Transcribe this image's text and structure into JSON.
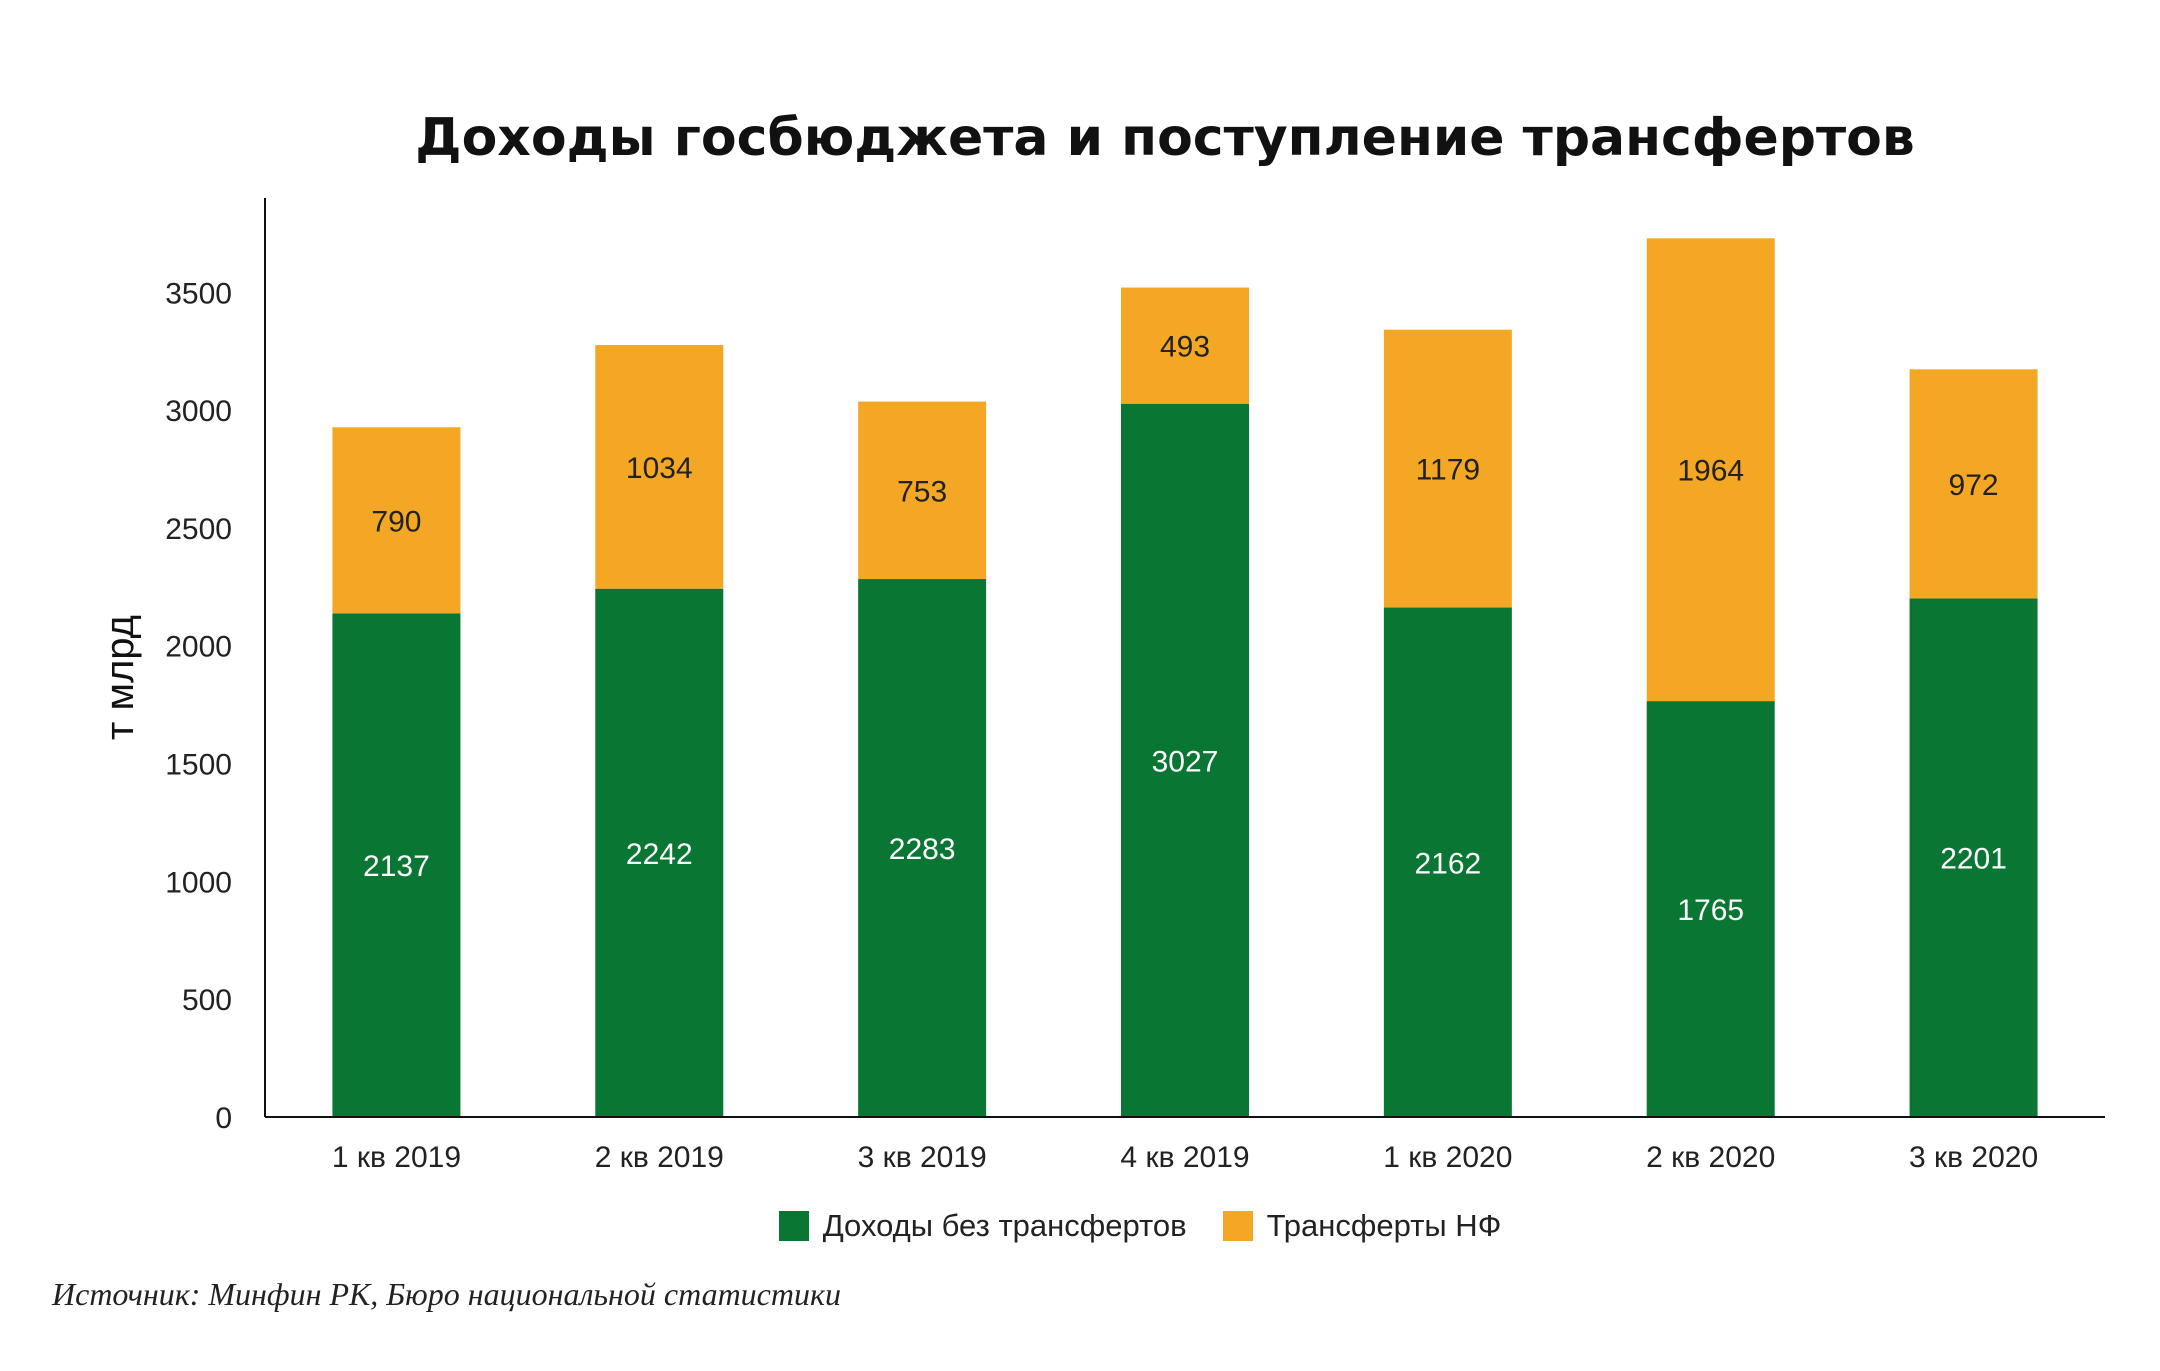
{
  "title": "Доходы госбюджета и поступление трансфертов",
  "source": "Источник: Минфин РК,  Бюро национальной статистики",
  "colors": {
    "green": "#097634",
    "orange": "#F4A724",
    "axis": "#111111"
  },
  "chart_data": {
    "type": "bar",
    "stacked": true,
    "title": "Доходы госбюджета и поступление трансфертов",
    "xlabel": "",
    "ylabel": "т млрд",
    "ylim": [
      0,
      3900
    ],
    "yticks": [
      0,
      500,
      1000,
      1500,
      2000,
      2500,
      3000,
      3500
    ],
    "categories": [
      "1 кв 2019",
      "2 кв 2019",
      "3 кв 2019",
      "4 кв 2019",
      "1 кв 2020",
      "2 кв 2020",
      "3 кв 2020"
    ],
    "series": [
      {
        "name": "Доходы без трансфертов",
        "color": "#097634",
        "label_color": "#ffffff",
        "values": [
          2137,
          2242,
          2283,
          3027,
          2162,
          1765,
          2201
        ]
      },
      {
        "name": "Трансферты НФ",
        "color": "#F4A724",
        "label_color": "#222222",
        "values": [
          790,
          1034,
          753,
          493,
          1179,
          1964,
          972
        ]
      }
    ],
    "legend": "bottom",
    "grid": false
  }
}
